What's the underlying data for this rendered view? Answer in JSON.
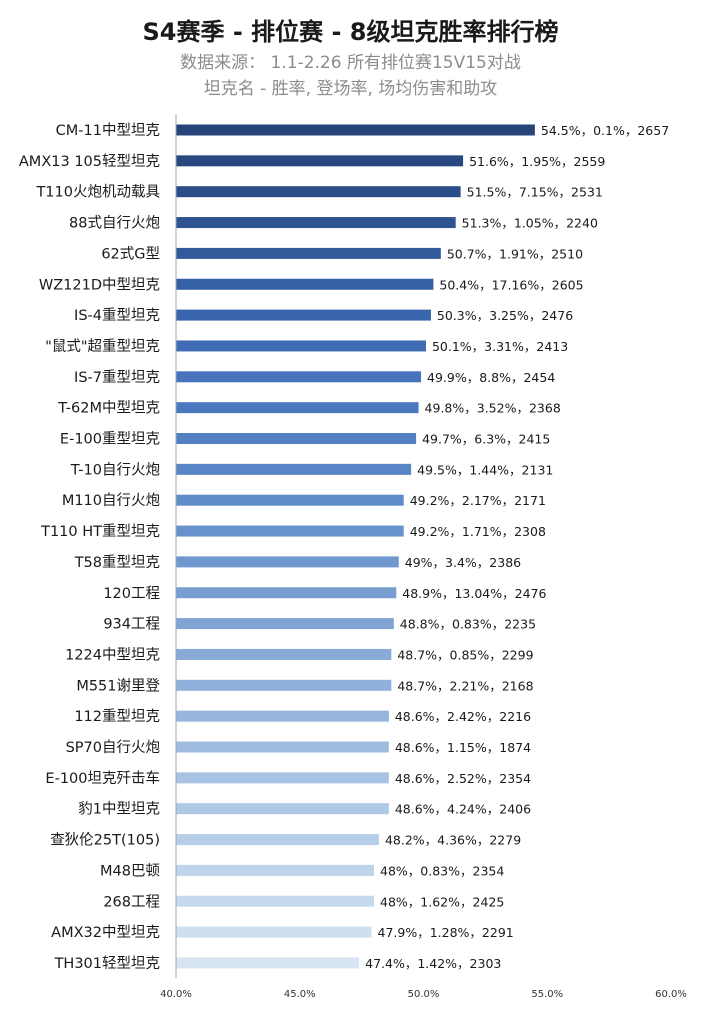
{
  "title": "S4赛季 - 排位赛 - 8级坦克胜率排行榜",
  "subtitle1": "数据来源：  1.1-2.26 所有排位赛15V15对战",
  "subtitle2": "坦克名 - 胜率, 登场率, 场均伤害和助攻",
  "chart_data": {
    "type": "bar",
    "orientation": "horizontal",
    "categories": [
      "CM-11中型坦克",
      "AMX13 105轻型坦克",
      "T110火炮机动载具",
      "88式自行火炮",
      "62式G型",
      "WZ121D中型坦克",
      "IS-4重型坦克",
      "\"鼠式\"超重型坦克",
      "IS-7重型坦克",
      "T-62M中型坦克",
      "E-100重型坦克",
      "T-10自行火炮",
      "M110自行火炮",
      "T110 HT重型坦克",
      "T58重型坦克",
      "120工程",
      "934工程",
      "1224中型坦克",
      "M551谢里登",
      "112重型坦克",
      "SP70自行火炮",
      "E-100坦克歼击车",
      "豹1中型坦克",
      "查狄伦25T(105)",
      "M48巴顿",
      "268工程",
      "AMX32中型坦克",
      "TH301轻型坦克"
    ],
    "values": [
      54.5,
      51.6,
      51.5,
      51.3,
      50.7,
      50.4,
      50.3,
      50.1,
      49.9,
      49.8,
      49.7,
      49.5,
      49.2,
      49.2,
      49.0,
      48.9,
      48.8,
      48.7,
      48.7,
      48.6,
      48.6,
      48.6,
      48.6,
      48.2,
      48.0,
      48.0,
      47.9,
      47.4
    ],
    "data_labels": [
      "54.5%，0.1%，2657",
      "51.6%，1.95%，2559",
      "51.5%，7.15%，2531",
      "51.3%，1.05%，2240",
      "50.7%，1.91%，2510",
      "50.4%，17.16%，2605",
      "50.3%，3.25%，2476",
      "50.1%，3.31%，2413",
      "49.9%，8.8%，2454",
      "49.8%，3.52%，2368",
      "49.7%，6.3%，2415",
      "49.5%，1.44%，2131",
      "49.2%，2.17%，2171",
      "49.2%，1.71%，2308",
      "49%，3.4%，2386",
      "48.9%，13.04%，2476",
      "48.8%，0.83%，2235",
      "48.7%，0.85%，2299",
      "48.7%，2.21%，2168",
      "48.6%，2.42%，2216",
      "48.6%，1.15%，1874",
      "48.6%，2.52%，2354",
      "48.6%，4.24%，2406",
      "48.2%，4.36%，2279",
      "48%，0.83%，2354",
      "48%，1.62%，2425",
      "47.9%，1.28%，2291",
      "47.4%，1.42%，2303"
    ],
    "xlim": [
      40.0,
      60.0
    ],
    "xticks": [
      "40.0%",
      "45.0%",
      "50.0%",
      "55.0%",
      "60.0%"
    ],
    "bar_colors": [
      "#264478",
      "#28497f",
      "#2b4e88",
      "#2e5491",
      "#32599a",
      "#3560a4",
      "#3a66ad",
      "#3f6cb5",
      "#4673bb",
      "#4b79bf",
      "#5280c3",
      "#5986c6",
      "#608cc9",
      "#6792cc",
      "#6f98ce",
      "#779ed1",
      "#7fa4d4",
      "#87aad7",
      "#8fb0da",
      "#97b6dd",
      "#9fbce0",
      "#a7c2e2",
      "#afc8e5",
      "#b7cee8",
      "#bfd4ea",
      "#c7daed",
      "#cfdff0",
      "#d7e4f2"
    ],
    "grid": false,
    "legend": "none"
  }
}
